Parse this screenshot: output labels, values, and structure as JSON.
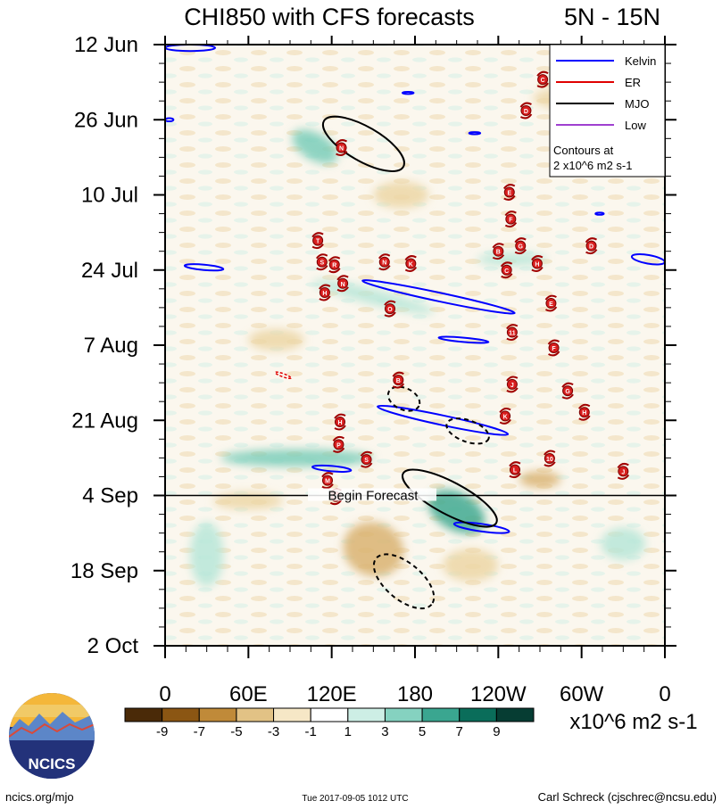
{
  "chart_data": {
    "type": "heatmap",
    "title": "CHI850 with CFS forecasts",
    "region": "5N - 15N",
    "x_ticks": [
      "0",
      "60E",
      "120E",
      "180",
      "120W",
      "60W",
      "0"
    ],
    "x_tick_degrees": [
      0,
      60,
      120,
      180,
      240,
      300,
      360
    ],
    "y_ticks": [
      "12 Jun",
      "26 Jun",
      "10 Jul",
      "24 Jul",
      "7 Aug",
      "21 Aug",
      "4 Sep",
      "18 Sep",
      "2 Oct"
    ],
    "y_tick_days": [
      0,
      14,
      28,
      42,
      56,
      70,
      84,
      98,
      112
    ],
    "xlim_deg": [
      0,
      360
    ],
    "ylim_days": [
      0,
      112
    ],
    "begin_forecast": {
      "label": "Begin Forecast",
      "day": 84
    },
    "colorbar": {
      "labels": [
        "-9",
        "-7",
        "-5",
        "-3",
        "-1",
        "1",
        "3",
        "5",
        "7",
        "9"
      ],
      "colors": [
        "#4a2a08",
        "#8b5613",
        "#c08a39",
        "#e2c285",
        "#f6e7c6",
        "#ffffff",
        "#cdeee5",
        "#85d2c0",
        "#3aa690",
        "#0a6d5a",
        "#063d33"
      ],
      "units": "x10^6 m2 s-1"
    },
    "legend": {
      "entries": [
        {
          "label": "Kelvin",
          "color": "#0000ff"
        },
        {
          "label": "ER",
          "color": "#e00000"
        },
        {
          "label": "MJO",
          "color": "#000000"
        },
        {
          "label": "Low",
          "color": "#a040d0"
        }
      ],
      "note": [
        "Contours at",
        "2 x10^6 m2 s-1"
      ]
    },
    "anomaly_patches": [
      {
        "lon": 108,
        "day": 19,
        "rx": 18,
        "ry": 2.5,
        "angle": 30,
        "level": 2
      },
      {
        "lon": 150,
        "day": 47,
        "rx": 45,
        "ry": 1.4,
        "angle": 14,
        "level": 1
      },
      {
        "lon": 95,
        "day": 77,
        "rx": 55,
        "ry": 1.6,
        "angle": 0,
        "level": 2
      },
      {
        "lon": 210,
        "day": 87,
        "rx": 22,
        "ry": 3.5,
        "angle": 28,
        "level": 3
      },
      {
        "lon": 30,
        "day": 95,
        "rx": 12,
        "ry": 6,
        "angle": 0,
        "level": 1
      },
      {
        "lon": 330,
        "day": 93,
        "rx": 16,
        "ry": 3,
        "angle": 0,
        "level": 1
      },
      {
        "lon": 250,
        "day": 40,
        "rx": 25,
        "ry": 1.2,
        "angle": 0,
        "level": 1
      },
      {
        "lon": 150,
        "day": 94,
        "rx": 22,
        "ry": 5,
        "angle": 20,
        "level": -2
      },
      {
        "lon": 220,
        "day": 97,
        "rx": 20,
        "ry": 3,
        "angle": 0,
        "level": -1
      },
      {
        "lon": 270,
        "day": 81,
        "rx": 15,
        "ry": 1.5,
        "angle": 0,
        "level": -2
      },
      {
        "lon": 60,
        "day": 85,
        "rx": 25,
        "ry": 1.6,
        "angle": 0,
        "level": -1
      },
      {
        "lon": 170,
        "day": 28,
        "rx": 20,
        "ry": 2.5,
        "angle": 0,
        "level": -1
      },
      {
        "lon": 290,
        "day": 10,
        "rx": 25,
        "ry": 2,
        "angle": 0,
        "level": -1
      },
      {
        "lon": 80,
        "day": 55,
        "rx": 20,
        "ry": 2,
        "angle": 0,
        "level": -1
      }
    ],
    "mjo_contours": [
      {
        "lon": 143,
        "day": 18.5,
        "rx": 33,
        "ry": 3.2,
        "angle": 30,
        "dashed": false
      },
      {
        "lon": 205,
        "day": 84.5,
        "rx": 38,
        "ry": 3,
        "angle": 28,
        "dashed": false
      },
      {
        "lon": 172,
        "day": 66,
        "rx": 12,
        "ry": 2,
        "angle": 25,
        "dashed": true
      },
      {
        "lon": 218,
        "day": 72,
        "rx": 16,
        "ry": 2,
        "angle": 20,
        "dashed": true
      },
      {
        "lon": 172,
        "day": 100,
        "rx": 26,
        "ry": 3.4,
        "angle": 40,
        "dashed": true
      }
    ],
    "kelvin_contours": [
      {
        "lon": 197,
        "day": 47,
        "rx": 56,
        "ry": 0.8,
        "angle": 12
      },
      {
        "lon": 200,
        "day": 70,
        "rx": 48,
        "ry": 0.9,
        "angle": 12
      },
      {
        "lon": 215,
        "day": 55,
        "rx": 18,
        "ry": 0.4,
        "angle": 5
      },
      {
        "lon": 18,
        "day": 0.6,
        "rx": 18,
        "ry": 0.6,
        "angle": 0
      },
      {
        "lon": 28,
        "day": 41.5,
        "rx": 14,
        "ry": 0.5,
        "angle": 5
      },
      {
        "lon": 348,
        "day": 40,
        "rx": 12,
        "ry": 0.8,
        "angle": 10
      },
      {
        "lon": 120,
        "day": 79,
        "rx": 14,
        "ry": 0.5,
        "angle": 5
      },
      {
        "lon": 228,
        "day": 90,
        "rx": 20,
        "ry": 0.7,
        "angle": 8
      },
      {
        "lon": 3,
        "day": 14,
        "rx": 3,
        "ry": 0.3,
        "angle": 0
      },
      {
        "lon": 175,
        "day": 9,
        "rx": 4,
        "ry": 0.2,
        "angle": 0
      },
      {
        "lon": 223,
        "day": 16.5,
        "rx": 4,
        "ry": 0.2,
        "angle": 0
      },
      {
        "lon": 313,
        "day": 31.5,
        "rx": 3,
        "ry": 0.2,
        "angle": 0
      }
    ],
    "er_contours": [
      {
        "lon": 85,
        "day": 61.6,
        "rx": 6,
        "ry": 0.3,
        "angle": 20
      }
    ],
    "storms": [
      {
        "name": "C",
        "lon": 272,
        "day": 6.5
      },
      {
        "name": "D",
        "lon": 260,
        "day": 12.3
      },
      {
        "name": "N",
        "lon": 127,
        "day": 19.2
      },
      {
        "name": "E",
        "lon": 248,
        "day": 27.5
      },
      {
        "name": "F",
        "lon": 249,
        "day": 32.5
      },
      {
        "name": "T",
        "lon": 110,
        "day": 36.5
      },
      {
        "name": "B",
        "lon": 240,
        "day": 38.5
      },
      {
        "name": "G",
        "lon": 256,
        "day": 37.5
      },
      {
        "name": "D",
        "lon": 307,
        "day": 37.5
      },
      {
        "name": "S",
        "lon": 113,
        "day": 40.5
      },
      {
        "name": "R",
        "lon": 122,
        "day": 41
      },
      {
        "name": "N",
        "lon": 158,
        "day": 40.5
      },
      {
        "name": "K",
        "lon": 177,
        "day": 40.8
      },
      {
        "name": "C",
        "lon": 246,
        "day": 42
      },
      {
        "name": "H",
        "lon": 268,
        "day": 40.8
      },
      {
        "name": "N",
        "lon": 128,
        "day": 44.5
      },
      {
        "name": "H",
        "lon": 115,
        "day": 46.2
      },
      {
        "name": "E",
        "lon": 278,
        "day": 48.2
      },
      {
        "name": "O",
        "lon": 162,
        "day": 49.2
      },
      {
        "name": "11",
        "lon": 250,
        "day": 53.6
      },
      {
        "name": "F",
        "lon": 280,
        "day": 56.5
      },
      {
        "name": "B",
        "lon": 168,
        "day": 62.5
      },
      {
        "name": "J",
        "lon": 250,
        "day": 63.3
      },
      {
        "name": "G",
        "lon": 290,
        "day": 64.5
      },
      {
        "name": "K",
        "lon": 245,
        "day": 69.2
      },
      {
        "name": "H",
        "lon": 302,
        "day": 68.5
      },
      {
        "name": "H",
        "lon": 126,
        "day": 70.3
      },
      {
        "name": "P",
        "lon": 125,
        "day": 74.5
      },
      {
        "name": "S",
        "lon": 145,
        "day": 77.3
      },
      {
        "name": "10",
        "lon": 277,
        "day": 77.1
      },
      {
        "name": "L",
        "lon": 252,
        "day": 79.2
      },
      {
        "name": "J",
        "lon": 330,
        "day": 79.5
      },
      {
        "name": "M",
        "lon": 117,
        "day": 81.2
      },
      {
        "name": "N",
        "lon": 123,
        "day": 84.2
      }
    ]
  },
  "footer": {
    "left": "ncics.org/mjo",
    "center": "Tue 2017-09-05 1012 UTC",
    "right": "Carl Schreck (cjschrec@ncsu.edu)",
    "logo_text": "NCICS"
  }
}
